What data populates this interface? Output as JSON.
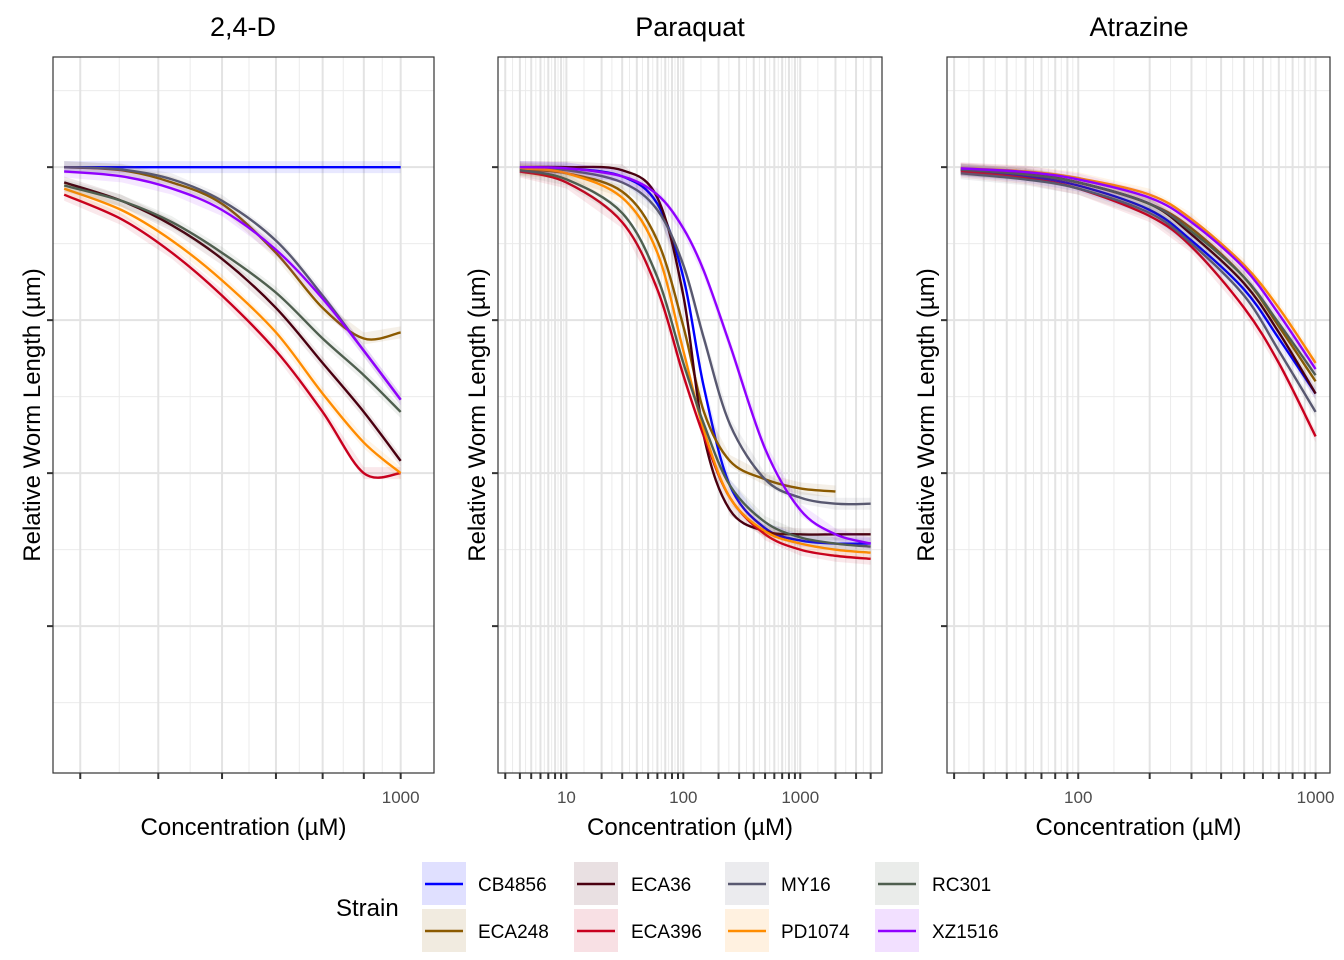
{
  "chart_data": [
    {
      "type": "line",
      "title": "2,4-D",
      "xlabel": "Concentration (µM)",
      "ylabel": "Relative Worm Length (µm)",
      "xscale": "log10",
      "xlim": [
        370,
        1100
      ],
      "ylim": [
        0.01,
        1.18
      ],
      "x_tick_marks": [
        400,
        500,
        600,
        700,
        800,
        900,
        1000
      ],
      "x_tick_labels": [
        {
          "value": 1000,
          "label": "1000"
        }
      ],
      "y_tick_marks": [
        0.25,
        0.5,
        0.75,
        1.0
      ],
      "y_tick_labels": [],
      "grid": true,
      "series": [
        {
          "name": "CB4856",
          "x": [
            382,
            1000
          ],
          "y": [
            1.0,
            1.0
          ]
        },
        {
          "name": "ECA248",
          "x": [
            382,
            450,
            520,
            600,
            700,
            800,
            900,
            1000
          ],
          "y": [
            1.0,
            0.995,
            0.975,
            0.94,
            0.86,
            0.77,
            0.72,
            0.73
          ]
        },
        {
          "name": "ECA36",
          "x": [
            382,
            450,
            520,
            600,
            700,
            800,
            900,
            1000
          ],
          "y": [
            0.975,
            0.945,
            0.905,
            0.85,
            0.77,
            0.68,
            0.6,
            0.52
          ]
        },
        {
          "name": "ECA396",
          "x": [
            382,
            450,
            520,
            600,
            700,
            800,
            900,
            1000
          ],
          "y": [
            0.955,
            0.915,
            0.86,
            0.79,
            0.7,
            0.6,
            0.5,
            0.5
          ]
        },
        {
          "name": "MY16",
          "x": [
            382,
            450,
            520,
            600,
            700,
            800,
            900,
            1000
          ],
          "y": [
            1.0,
            0.996,
            0.98,
            0.945,
            0.88,
            0.79,
            0.7,
            0.62
          ]
        },
        {
          "name": "PD1074",
          "x": [
            382,
            450,
            520,
            600,
            700,
            800,
            900,
            1000
          ],
          "y": [
            0.965,
            0.93,
            0.88,
            0.815,
            0.73,
            0.63,
            0.55,
            0.5
          ]
        },
        {
          "name": "RC301",
          "x": [
            382,
            450,
            520,
            600,
            700,
            800,
            900,
            1000
          ],
          "y": [
            0.97,
            0.945,
            0.91,
            0.86,
            0.795,
            0.72,
            0.66,
            0.6
          ]
        },
        {
          "name": "XZ1516",
          "x": [
            382,
            450,
            520,
            600,
            700,
            800,
            900,
            1000
          ],
          "y": [
            0.993,
            0.985,
            0.965,
            0.93,
            0.865,
            0.785,
            0.7,
            0.62
          ]
        }
      ]
    },
    {
      "type": "line",
      "title": "Paraquat",
      "xlabel": "Concentration (µM)",
      "ylabel": "Relative Worm Length (µm)",
      "xscale": "log10",
      "xlim": [
        2.6,
        5000
      ],
      "ylim": [
        0.01,
        1.18
      ],
      "x_tick_marks": [
        3,
        4,
        5,
        6,
        7,
        8,
        9,
        10,
        20,
        30,
        40,
        50,
        60,
        70,
        80,
        90,
        100,
        200,
        300,
        400,
        500,
        600,
        700,
        800,
        900,
        1000,
        2000,
        3000,
        4000
      ],
      "x_tick_labels": [
        {
          "value": 10,
          "label": "10"
        },
        {
          "value": 100,
          "label": "100"
        },
        {
          "value": 1000,
          "label": "1000"
        }
      ],
      "y_tick_marks": [
        0.25,
        0.5,
        0.75,
        1.0
      ],
      "y_tick_labels": [],
      "grid": true,
      "series": [
        {
          "name": "CB4856",
          "x": [
            4,
            10,
            30,
            60,
            100,
            150,
            250,
            500,
            1000,
            2000,
            4000
          ],
          "y": [
            1.0,
            0.998,
            0.985,
            0.94,
            0.82,
            0.64,
            0.48,
            0.41,
            0.39,
            0.385,
            0.385
          ]
        },
        {
          "name": "ECA248",
          "x": [
            4,
            10,
            30,
            60,
            100,
            150,
            250,
            500,
            1000,
            2000
          ],
          "y": [
            0.996,
            0.99,
            0.96,
            0.88,
            0.74,
            0.6,
            0.52,
            0.49,
            0.475,
            0.47
          ]
        },
        {
          "name": "ECA36",
          "x": [
            4,
            10,
            30,
            60,
            100,
            150,
            250,
            500,
            1000,
            2000,
            4000
          ],
          "y": [
            1.0,
            1.0,
            0.995,
            0.95,
            0.79,
            0.56,
            0.44,
            0.405,
            0.4,
            0.4,
            0.4
          ]
        },
        {
          "name": "ECA396",
          "x": [
            4,
            10,
            30,
            60,
            100,
            150,
            250,
            500,
            1000,
            2000,
            4000
          ],
          "y": [
            0.993,
            0.975,
            0.91,
            0.8,
            0.66,
            0.56,
            0.46,
            0.4,
            0.375,
            0.365,
            0.36
          ]
        },
        {
          "name": "MY16",
          "x": [
            4,
            10,
            30,
            60,
            100,
            150,
            250,
            500,
            1000,
            2000,
            4000
          ],
          "y": [
            0.998,
            0.995,
            0.975,
            0.93,
            0.84,
            0.72,
            0.58,
            0.49,
            0.46,
            0.45,
            0.45
          ]
        },
        {
          "name": "PD1074",
          "x": [
            4,
            10,
            30,
            60,
            100,
            150,
            250,
            500,
            1000,
            2000,
            4000
          ],
          "y": [
            0.998,
            0.99,
            0.95,
            0.86,
            0.7,
            0.57,
            0.46,
            0.405,
            0.385,
            0.375,
            0.37
          ]
        },
        {
          "name": "RC301",
          "x": [
            4,
            10,
            30,
            60,
            100,
            150,
            250,
            500,
            1000,
            2000,
            4000
          ],
          "y": [
            0.995,
            0.98,
            0.925,
            0.82,
            0.68,
            0.58,
            0.48,
            0.42,
            0.395,
            0.385,
            0.38
          ]
        },
        {
          "name": "XZ1516",
          "x": [
            4,
            10,
            30,
            60,
            100,
            150,
            250,
            500,
            1000,
            2000,
            4000
          ],
          "y": [
            1.0,
            0.998,
            0.985,
            0.955,
            0.9,
            0.83,
            0.71,
            0.54,
            0.44,
            0.4,
            0.385
          ]
        }
      ]
    },
    {
      "type": "line",
      "title": "Atrazine",
      "xlabel": "Concentration (µM)",
      "ylabel": "Relative Worm Length (µm)",
      "xscale": "log10",
      "xlim": [
        28,
        1150
      ],
      "ylim": [
        0.01,
        1.18
      ],
      "x_tick_marks": [
        30,
        40,
        50,
        60,
        70,
        80,
        90,
        100,
        200,
        300,
        400,
        500,
        600,
        700,
        800,
        900,
        1000
      ],
      "x_tick_labels": [
        {
          "value": 100,
          "label": "100"
        },
        {
          "value": 1000,
          "label": "1000"
        }
      ],
      "y_tick_marks": [
        0.25,
        0.5,
        0.75,
        1.0
      ],
      "y_tick_labels": [],
      "grid": true,
      "series": [
        {
          "name": "CB4856",
          "x": [
            32,
            60,
            100,
            200,
            300,
            500,
            700,
            1000
          ],
          "y": [
            0.995,
            0.985,
            0.97,
            0.93,
            0.88,
            0.8,
            0.72,
            0.63
          ]
        },
        {
          "name": "ECA248",
          "x": [
            32,
            60,
            100,
            200,
            300,
            500,
            700,
            1000
          ],
          "y": [
            0.997,
            0.99,
            0.975,
            0.94,
            0.9,
            0.82,
            0.74,
            0.65
          ]
        },
        {
          "name": "ECA36",
          "x": [
            32,
            60,
            100,
            200,
            300,
            500,
            700,
            1000
          ],
          "y": [
            0.996,
            0.988,
            0.975,
            0.94,
            0.89,
            0.81,
            0.73,
            0.63
          ]
        },
        {
          "name": "ECA396",
          "x": [
            32,
            60,
            100,
            200,
            300,
            500,
            700,
            1000
          ],
          "y": [
            0.993,
            0.982,
            0.965,
            0.92,
            0.87,
            0.77,
            0.68,
            0.56
          ]
        },
        {
          "name": "MY16",
          "x": [
            32,
            60,
            100,
            200,
            300,
            500,
            700,
            1000
          ],
          "y": [
            0.99,
            0.98,
            0.965,
            0.925,
            0.875,
            0.79,
            0.7,
            0.6
          ]
        },
        {
          "name": "PD1074",
          "x": [
            32,
            60,
            100,
            200,
            300,
            500,
            700,
            1000
          ],
          "y": [
            0.998,
            0.993,
            0.982,
            0.955,
            0.915,
            0.84,
            0.77,
            0.68
          ]
        },
        {
          "name": "RC301",
          "x": [
            32,
            60,
            100,
            200,
            300,
            500,
            700,
            1000
          ],
          "y": [
            0.996,
            0.988,
            0.975,
            0.94,
            0.895,
            0.82,
            0.745,
            0.66
          ]
        },
        {
          "name": "XZ1516",
          "x": [
            32,
            60,
            100,
            200,
            300,
            500,
            700,
            1000
          ],
          "y": [
            0.998,
            0.992,
            0.98,
            0.95,
            0.91,
            0.835,
            0.76,
            0.67
          ]
        }
      ]
    }
  ],
  "legend": {
    "title": "Strain",
    "placement": "bottom",
    "items": [
      {
        "name": "CB4856",
        "color": "#0000FF"
      },
      {
        "name": "ECA248",
        "color": "#8B5A00"
      },
      {
        "name": "ECA36",
        "color": "#4A0010"
      },
      {
        "name": "ECA396",
        "color": "#C8001E"
      },
      {
        "name": "MY16",
        "color": "#585870"
      },
      {
        "name": "PD1074",
        "color": "#FF8C00"
      },
      {
        "name": "RC301",
        "color": "#4F5F4F"
      },
      {
        "name": "XZ1516",
        "color": "#9000FF"
      }
    ]
  }
}
